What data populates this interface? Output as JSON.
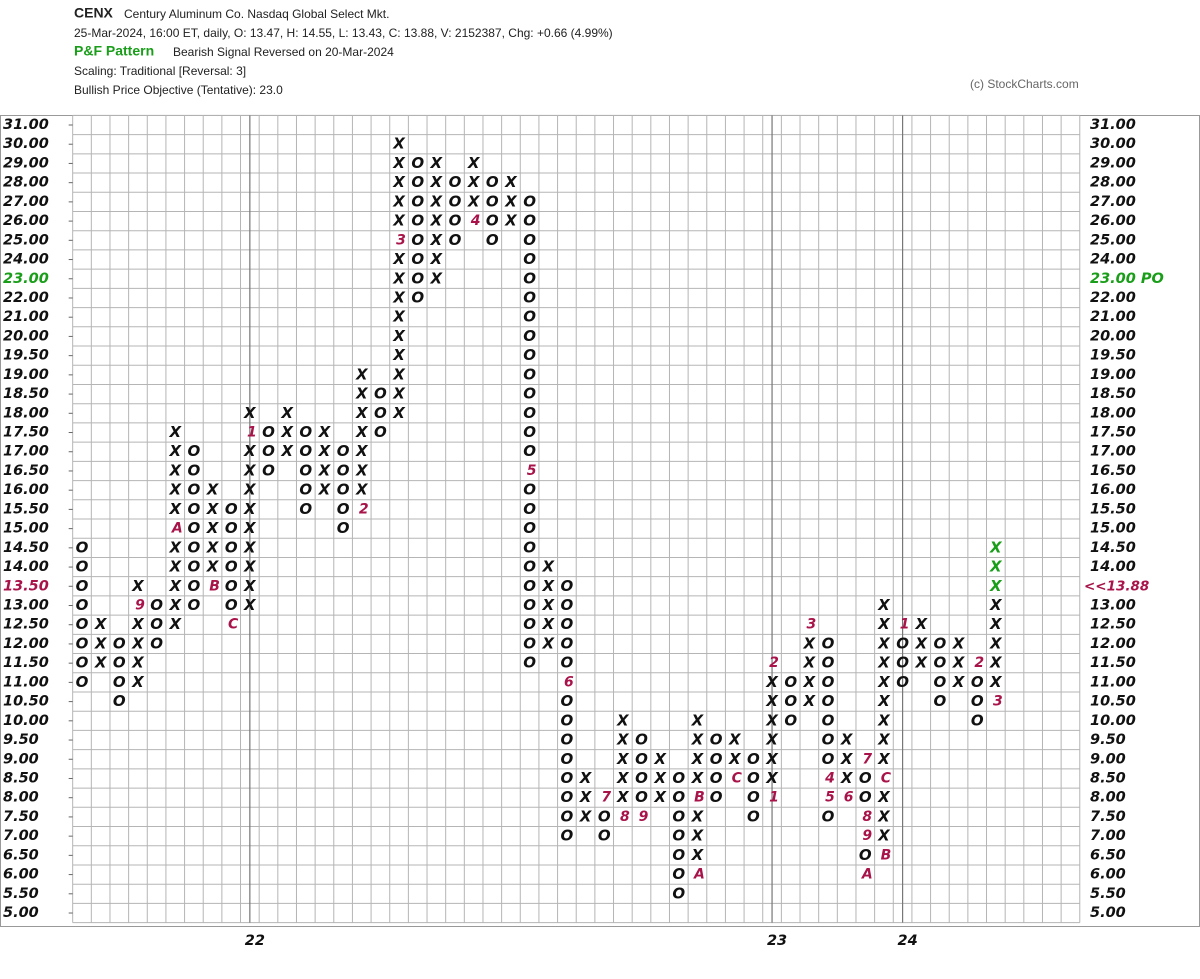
{
  "header": {
    "symbol": "CENX",
    "name": "Century Aluminum Co.  Nasdaq Global Select Mkt.",
    "quote": "25-Mar-2024, 16:00 ET, daily, O: 13.47, H: 14.55, L: 13.43, C: 13.88, V: 2152387, Chg: +0.66 (4.99%)",
    "pattern_title": "P&F Pattern",
    "pattern": "Bearish Signal Reversed on 20-Mar-2024",
    "scaling": "Scaling: Traditional [Reversal: 3]",
    "objective": "Bullish Price Objective (Tentative): 23.0",
    "copyright": "(c) StockCharts.com"
  },
  "chart_data": {
    "type": "point-and-figure",
    "yticks": [
      {
        "value": 31,
        "label": "31.00"
      },
      {
        "value": 30,
        "label": "30.00"
      },
      {
        "value": 29,
        "label": "29.00"
      },
      {
        "value": 28,
        "label": "28.00"
      },
      {
        "value": 27,
        "label": "27.00"
      },
      {
        "value": 26,
        "label": "26.00"
      },
      {
        "value": 25,
        "label": "25.00"
      },
      {
        "value": 24,
        "label": "24.00"
      },
      {
        "value": 23,
        "label": "23.00"
      },
      {
        "value": 22,
        "label": "22.00"
      },
      {
        "value": 21,
        "label": "21.00"
      },
      {
        "value": 20,
        "label": "20.00"
      },
      {
        "value": 19.5,
        "label": "19.50"
      },
      {
        "value": 19,
        "label": "19.00"
      },
      {
        "value": 18.5,
        "label": "18.50"
      },
      {
        "value": 18,
        "label": "18.00"
      },
      {
        "value": 17.5,
        "label": "17.50"
      },
      {
        "value": 17,
        "label": "17.00"
      },
      {
        "value": 16.5,
        "label": "16.50"
      },
      {
        "value": 16,
        "label": "16.00"
      },
      {
        "value": 15.5,
        "label": "15.50"
      },
      {
        "value": 15,
        "label": "15.00"
      },
      {
        "value": 14.5,
        "label": "14.50"
      },
      {
        "value": 14,
        "label": "14.00"
      },
      {
        "value": 13.5,
        "label": "13.50"
      },
      {
        "value": 13,
        "label": "13.00"
      },
      {
        "value": 12.5,
        "label": "12.50"
      },
      {
        "value": 12,
        "label": "12.00"
      },
      {
        "value": 11.5,
        "label": "11.50"
      },
      {
        "value": 11,
        "label": "11.00"
      },
      {
        "value": 10.5,
        "label": "10.50"
      },
      {
        "value": 10,
        "label": "10.00"
      },
      {
        "value": 9.5,
        "label": "9.50"
      },
      {
        "value": 9,
        "label": "9.00"
      },
      {
        "value": 8.5,
        "label": "8.50"
      },
      {
        "value": 8,
        "label": "8.00"
      },
      {
        "value": 7.5,
        "label": "7.50"
      },
      {
        "value": 7,
        "label": "7.00"
      },
      {
        "value": 6.5,
        "label": "6.50"
      },
      {
        "value": 6,
        "label": "6.00"
      },
      {
        "value": 5.5,
        "label": "5.50"
      },
      {
        "value": 5,
        "label": "5.00"
      }
    ],
    "price_objective": {
      "value": 23,
      "label": "23.00 PO",
      "color": "#1a9e1a"
    },
    "last_price": {
      "value": 13.88,
      "label": "<<13.88",
      "color": "#a8144a"
    },
    "marker_color": "#a8144a",
    "recent_color": "#1a9e1a",
    "year_marks": [
      {
        "column": 9,
        "label": "22"
      },
      {
        "column": 37,
        "label": "23"
      },
      {
        "column": 44,
        "label": "24"
      }
    ],
    "columns": [
      {
        "type": "O",
        "high": 14.5,
        "low": 11,
        "markers": []
      },
      {
        "type": "X",
        "high": 12.5,
        "low": 11.5,
        "markers": []
      },
      {
        "type": "O",
        "high": 12,
        "low": 10.5,
        "markers": []
      },
      {
        "type": "X",
        "high": 13.5,
        "low": 11,
        "markers": [
          {
            "price": 13,
            "label": "9"
          }
        ]
      },
      {
        "type": "O",
        "high": 13,
        "low": 12,
        "markers": []
      },
      {
        "type": "X",
        "high": 17.5,
        "low": 12.5,
        "markers": [
          {
            "price": 15,
            "label": "A"
          }
        ]
      },
      {
        "type": "O",
        "high": 17,
        "low": 13,
        "markers": []
      },
      {
        "type": "X",
        "high": 16,
        "low": 13.5,
        "markers": [
          {
            "price": 13.5,
            "label": "B"
          }
        ]
      },
      {
        "type": "O",
        "high": 15.5,
        "low": 12.5,
        "markers": [
          {
            "price": 12.5,
            "label": "C"
          }
        ]
      },
      {
        "type": "X",
        "high": 18,
        "low": 13,
        "markers": [
          {
            "price": 17.5,
            "label": "1"
          }
        ]
      },
      {
        "type": "O",
        "high": 17.5,
        "low": 16.5,
        "markers": []
      },
      {
        "type": "X",
        "high": 18,
        "low": 17,
        "markers": []
      },
      {
        "type": "O",
        "high": 17.5,
        "low": 15.5,
        "markers": []
      },
      {
        "type": "X",
        "high": 17.5,
        "low": 16,
        "markers": []
      },
      {
        "type": "O",
        "high": 17,
        "low": 15,
        "markers": []
      },
      {
        "type": "X",
        "high": 19,
        "low": 15.5,
        "markers": [
          {
            "price": 15.5,
            "label": "2"
          }
        ]
      },
      {
        "type": "O",
        "high": 18.5,
        "low": 17.5,
        "markers": []
      },
      {
        "type": "X",
        "high": 30,
        "low": 18,
        "markers": [
          {
            "price": 25,
            "label": "3"
          }
        ]
      },
      {
        "type": "O",
        "high": 29,
        "low": 22,
        "markers": []
      },
      {
        "type": "X",
        "high": 29,
        "low": 23,
        "markers": []
      },
      {
        "type": "O",
        "high": 28,
        "low": 25,
        "markers": []
      },
      {
        "type": "X",
        "high": 29,
        "low": 26,
        "markers": [
          {
            "price": 26,
            "label": "4"
          }
        ]
      },
      {
        "type": "O",
        "high": 28,
        "low": 25,
        "markers": []
      },
      {
        "type": "X",
        "high": 28,
        "low": 26,
        "markers": []
      },
      {
        "type": "O",
        "high": 27,
        "low": 11.5,
        "markers": [
          {
            "price": 16.5,
            "label": "5"
          }
        ]
      },
      {
        "type": "X",
        "high": 14,
        "low": 12,
        "markers": []
      },
      {
        "type": "O",
        "high": 13.5,
        "low": 7,
        "markers": [
          {
            "price": 11,
            "label": "6"
          }
        ]
      },
      {
        "type": "X",
        "high": 8.5,
        "low": 7.5,
        "markers": []
      },
      {
        "type": "O",
        "high": 8,
        "low": 7,
        "markers": [
          {
            "price": 8,
            "label": "7"
          }
        ]
      },
      {
        "type": "X",
        "high": 10,
        "low": 7.5,
        "markers": [
          {
            "price": 7.5,
            "label": "8"
          }
        ]
      },
      {
        "type": "O",
        "high": 9.5,
        "low": 7.5,
        "markers": [
          {
            "price": 7.5,
            "label": "9"
          }
        ]
      },
      {
        "type": "X",
        "high": 9,
        "low": 8,
        "markers": []
      },
      {
        "type": "O",
        "high": 8.5,
        "low": 5.5,
        "markers": []
      },
      {
        "type": "X",
        "high": 10,
        "low": 6,
        "markers": [
          {
            "price": 6,
            "label": "A"
          },
          {
            "price": 8,
            "label": "B"
          }
        ]
      },
      {
        "type": "O",
        "high": 9.5,
        "low": 8,
        "markers": []
      },
      {
        "type": "X",
        "high": 9.5,
        "low": 8.5,
        "markers": [
          {
            "price": 8.5,
            "label": "C"
          }
        ]
      },
      {
        "type": "O",
        "high": 9,
        "low": 7.5,
        "markers": []
      },
      {
        "type": "X",
        "high": 11.5,
        "low": 8,
        "markers": [
          {
            "price": 8,
            "label": "1"
          },
          {
            "price": 11.5,
            "label": "2"
          }
        ]
      },
      {
        "type": "O",
        "high": 11,
        "low": 10,
        "markers": []
      },
      {
        "type": "X",
        "high": 12.5,
        "low": 10.5,
        "markers": [
          {
            "price": 12.5,
            "label": "3"
          }
        ]
      },
      {
        "type": "O",
        "high": 12,
        "low": 7.5,
        "markers": [
          {
            "price": 8.5,
            "label": "4"
          },
          {
            "price": 8,
            "label": "5"
          }
        ]
      },
      {
        "type": "X",
        "high": 9.5,
        "low": 8,
        "markers": [
          {
            "price": 8,
            "label": "6"
          }
        ]
      },
      {
        "type": "O",
        "high": 9,
        "low": 6,
        "markers": [
          {
            "price": 9,
            "label": "7"
          },
          {
            "price": 7.5,
            "label": "8"
          },
          {
            "price": 7,
            "label": "9"
          },
          {
            "price": 6,
            "label": "A"
          }
        ]
      },
      {
        "type": "X",
        "high": 13,
        "low": 6.5,
        "markers": [
          {
            "price": 6.5,
            "label": "B"
          },
          {
            "price": 8.5,
            "label": "C"
          }
        ]
      },
      {
        "type": "O",
        "high": 12.5,
        "low": 11,
        "markers": [
          {
            "price": 12.5,
            "label": "1"
          }
        ]
      },
      {
        "type": "X",
        "high": 12.5,
        "low": 11.5,
        "markers": []
      },
      {
        "type": "O",
        "high": 12,
        "low": 10.5,
        "markers": []
      },
      {
        "type": "X",
        "high": 12,
        "low": 11,
        "markers": []
      },
      {
        "type": "O",
        "high": 11.5,
        "low": 10,
        "markers": [
          {
            "price": 11.5,
            "label": "2"
          }
        ]
      },
      {
        "type": "X",
        "high": 14.5,
        "low": 10.5,
        "markers": [
          {
            "price": 10.5,
            "label": "3"
          }
        ],
        "recent_from": 13.5
      }
    ]
  }
}
